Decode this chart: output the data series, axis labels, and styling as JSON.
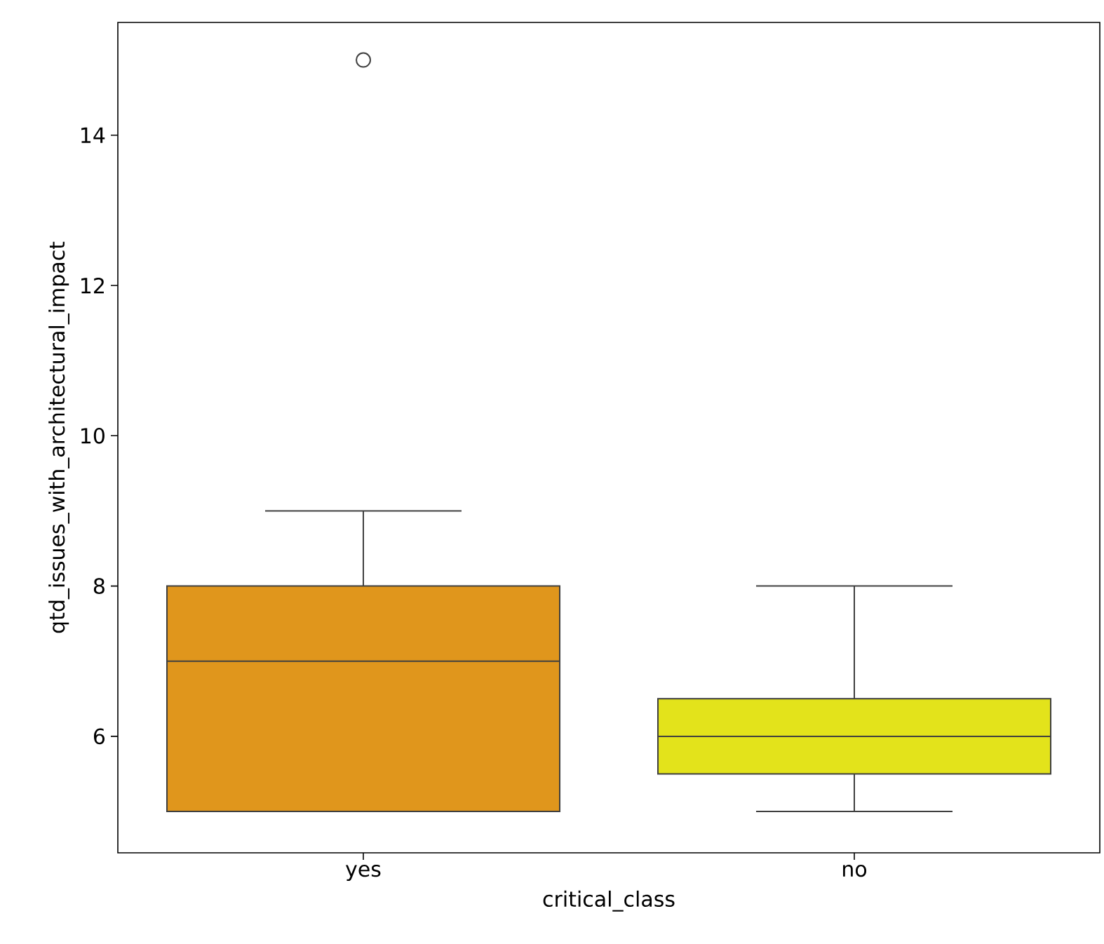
{
  "chart_data": {
    "type": "box",
    "xlabel": "critical_class",
    "ylabel": "qtd_issues_with_architectural_impact",
    "categories": [
      "yes",
      "no"
    ],
    "colors": [
      "#e0961c",
      "#e3e31b"
    ],
    "boxes": [
      {
        "low": 5,
        "q1": 5,
        "median": 7,
        "q3": 8,
        "high": 9,
        "outliers": [
          15
        ]
      },
      {
        "low": 5,
        "q1": 5.5,
        "median": 6,
        "q3": 6.5,
        "high": 8
      }
    ],
    "ylim": [
      4.45,
      15.5
    ],
    "yticks": [
      6,
      8,
      10,
      12,
      14
    ]
  }
}
